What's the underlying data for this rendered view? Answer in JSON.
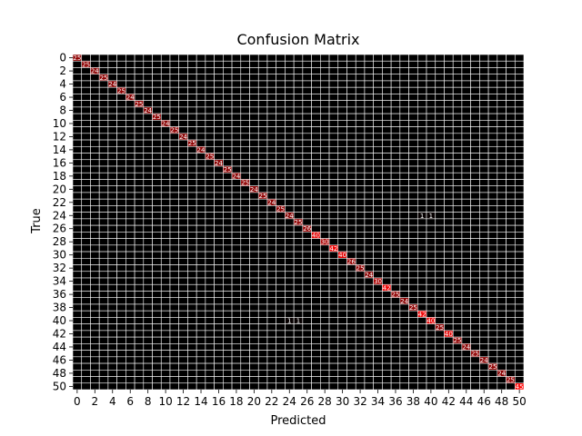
{
  "chart_data": {
    "type": "heatmap",
    "title": "Confusion Matrix",
    "xlabel": "Predicted",
    "ylabel": "True",
    "n_classes": 51,
    "tick_labels": [
      "0",
      "2",
      "4",
      "6",
      "8",
      "10",
      "12",
      "14",
      "16",
      "18",
      "20",
      "22",
      "24",
      "26",
      "28",
      "30",
      "32",
      "34",
      "36",
      "38",
      "40",
      "42",
      "44",
      "46",
      "48",
      "50"
    ],
    "colormap": {
      "low": "#000000",
      "high": "#ff0000"
    },
    "grid_color": "#ffffff",
    "off_diagonal_cells": [
      {
        "row": 24,
        "col": 39,
        "value": 1
      },
      {
        "row": 24,
        "col": 40,
        "value": 1
      },
      {
        "row": 40,
        "col": 24,
        "value": 1
      },
      {
        "row": 40,
        "col": 25,
        "value": 1
      }
    ],
    "diagonal_cells": [
      {
        "row": 0,
        "col": 0,
        "value": 25
      },
      {
        "row": 1,
        "col": 1,
        "value": 25
      },
      {
        "row": 2,
        "col": 2,
        "value": 24
      },
      {
        "row": 3,
        "col": 3,
        "value": 25
      },
      {
        "row": 4,
        "col": 4,
        "value": 24
      },
      {
        "row": 5,
        "col": 5,
        "value": 25
      },
      {
        "row": 6,
        "col": 6,
        "value": 24
      },
      {
        "row": 7,
        "col": 7,
        "value": 25
      },
      {
        "row": 8,
        "col": 8,
        "value": 24
      },
      {
        "row": 9,
        "col": 9,
        "value": 25
      },
      {
        "row": 10,
        "col": 10,
        "value": 24
      },
      {
        "row": 11,
        "col": 11,
        "value": 25
      },
      {
        "row": 12,
        "col": 12,
        "value": 24
      },
      {
        "row": 13,
        "col": 13,
        "value": 25
      },
      {
        "row": 14,
        "col": 14,
        "value": 24
      },
      {
        "row": 15,
        "col": 15,
        "value": 25
      },
      {
        "row": 16,
        "col": 16,
        "value": 24
      },
      {
        "row": 17,
        "col": 17,
        "value": 25
      },
      {
        "row": 18,
        "col": 18,
        "value": 24
      },
      {
        "row": 19,
        "col": 19,
        "value": 25
      },
      {
        "row": 20,
        "col": 20,
        "value": 24
      },
      {
        "row": 21,
        "col": 21,
        "value": 25
      },
      {
        "row": 22,
        "col": 22,
        "value": 24
      },
      {
        "row": 23,
        "col": 23,
        "value": 25
      },
      {
        "row": 24,
        "col": 24,
        "value": 24
      },
      {
        "row": 25,
        "col": 25,
        "value": 25
      },
      {
        "row": 26,
        "col": 26,
        "value": 26
      },
      {
        "row": 27,
        "col": 27,
        "value": 40
      },
      {
        "row": 28,
        "col": 28,
        "value": 30
      },
      {
        "row": 29,
        "col": 29,
        "value": 42
      },
      {
        "row": 30,
        "col": 30,
        "value": 40
      },
      {
        "row": 31,
        "col": 31,
        "value": 26
      },
      {
        "row": 32,
        "col": 32,
        "value": 25
      },
      {
        "row": 33,
        "col": 33,
        "value": 24
      },
      {
        "row": 34,
        "col": 34,
        "value": 30
      },
      {
        "row": 35,
        "col": 35,
        "value": 42
      },
      {
        "row": 36,
        "col": 36,
        "value": 25
      },
      {
        "row": 37,
        "col": 37,
        "value": 24
      },
      {
        "row": 38,
        "col": 38,
        "value": 25
      },
      {
        "row": 39,
        "col": 39,
        "value": 42
      },
      {
        "row": 40,
        "col": 40,
        "value": 40
      },
      {
        "row": 41,
        "col": 41,
        "value": 25
      },
      {
        "row": 42,
        "col": 42,
        "value": 40
      },
      {
        "row": 43,
        "col": 43,
        "value": 25
      },
      {
        "row": 44,
        "col": 44,
        "value": 24
      },
      {
        "row": 45,
        "col": 45,
        "value": 25
      },
      {
        "row": 46,
        "col": 46,
        "value": 24
      },
      {
        "row": 47,
        "col": 47,
        "value": 25
      },
      {
        "row": 48,
        "col": 48,
        "value": 24
      },
      {
        "row": 49,
        "col": 49,
        "value": 25
      },
      {
        "row": 50,
        "col": 50,
        "value": 45
      }
    ]
  }
}
